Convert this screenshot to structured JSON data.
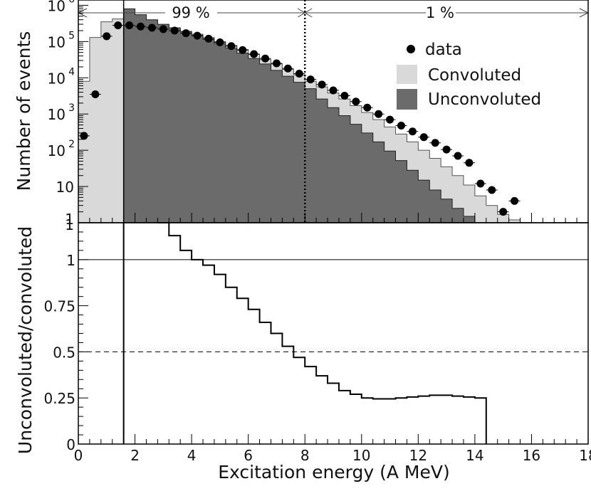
{
  "chart_data": [
    {
      "type": "histogram",
      "panel": "top",
      "y_scale": "log",
      "ylabel": "Number of events",
      "xlim": [
        0,
        18
      ],
      "ylim": [
        1,
        1400000
      ],
      "y_ticks": [
        {
          "value": 1,
          "label": "1"
        },
        {
          "value": 10,
          "label": "10"
        },
        {
          "value": 100,
          "label": "10",
          "sup": "2"
        },
        {
          "value": 1000,
          "label": "10",
          "sup": "3"
        },
        {
          "value": 10000,
          "label": "10",
          "sup": "4"
        },
        {
          "value": 100000,
          "label": "10",
          "sup": "5"
        },
        {
          "value": 1000000,
          "label": "10",
          "sup": "6"
        }
      ],
      "bin_edges": [
        0.0,
        0.4,
        0.8,
        1.2,
        1.6,
        2.0,
        2.4,
        2.8,
        3.2,
        3.6,
        4.0,
        4.4,
        4.8,
        5.2,
        5.6,
        6.0,
        6.4,
        6.8,
        7.2,
        7.6,
        8.0,
        8.4,
        8.8,
        9.2,
        9.6,
        10.0,
        10.4,
        10.8,
        11.2,
        11.6,
        12.0,
        12.4,
        12.8,
        13.2,
        13.6,
        14.0,
        14.4,
        14.8,
        15.2,
        15.6,
        16.0,
        16.4,
        16.8
      ],
      "series": [
        {
          "name": "Convoluted",
          "color": "#d9d9d9",
          "values": [
            8000,
            130000,
            350000,
            420000,
            400000,
            350000,
            300000,
            260000,
            225000,
            190000,
            160000,
            130000,
            100000,
            78000,
            60000,
            44000,
            32000,
            24000,
            17000,
            12000,
            8000,
            5600,
            3800,
            2600,
            1700,
            1100,
            700,
            440,
            280,
            170,
            100,
            60,
            35,
            20,
            11,
            5.5,
            3,
            1.7,
            1.2,
            1,
            0,
            0
          ]
        },
        {
          "name": "Unconvoluted",
          "color": "#6b6b6b",
          "values": [
            0,
            0,
            0,
            0,
            800000,
            550000,
            400000,
            300000,
            240000,
            190000,
            150000,
            115000,
            88000,
            66000,
            48000,
            34000,
            24000,
            16000,
            11000,
            7500,
            5000,
            2600,
            1500,
            900,
            520,
            300,
            170,
            95,
            52,
            28,
            15,
            8,
            4.5,
            2.5,
            1.5,
            1,
            0,
            0,
            0,
            0,
            0,
            0
          ]
        },
        {
          "name": "data",
          "type": "scatter",
          "x": [
            0.2,
            0.6,
            1.0,
            1.4,
            1.8,
            2.2,
            2.6,
            3.0,
            3.4,
            3.8,
            4.2,
            4.6,
            5.0,
            5.4,
            5.8,
            6.2,
            6.6,
            7.0,
            7.4,
            7.8,
            8.2,
            8.6,
            9.0,
            9.4,
            9.8,
            10.2,
            10.6,
            11.0,
            11.4,
            11.8,
            12.2,
            12.6,
            13.0,
            13.4,
            13.8,
            14.2,
            14.6,
            15.0,
            15.4
          ],
          "y": [
            250,
            3500,
            140000,
            280000,
            280000,
            260000,
            240000,
            220000,
            200000,
            170000,
            145000,
            120000,
            95000,
            75000,
            58000,
            45000,
            34000,
            25000,
            18000,
            13000,
            9000,
            6500,
            4500,
            3200,
            2200,
            1500,
            1000,
            700,
            480,
            330,
            230,
            160,
            105,
            70,
            45,
            12,
            8,
            2,
            4
          ]
        }
      ],
      "legend": {
        "placement": "top-right",
        "entries": [
          "data",
          "Convoluted",
          "Unconvoluted"
        ]
      },
      "annotations": [
        {
          "text": "99 %",
          "range": [
            0,
            8
          ]
        },
        {
          "text": "1 %",
          "range": [
            8,
            18
          ]
        }
      ],
      "reference_lines": [
        {
          "orientation": "vertical",
          "x": 8,
          "style": "dotted"
        },
        {
          "orientation": "vertical",
          "x": 1.6,
          "style": "solid"
        }
      ]
    },
    {
      "type": "line",
      "panel": "bottom",
      "xlabel": "Excitation energy (A MeV)",
      "ylabel": "Unconvoluted/convoluted",
      "xlim": [
        0,
        18
      ],
      "ylim": [
        0,
        1.2
      ],
      "x_ticks": [
        0,
        2,
        4,
        6,
        8,
        10,
        12,
        14,
        16,
        18
      ],
      "y_ticks": [
        {
          "value": 0,
          "label": "0"
        },
        {
          "value": 0.25,
          "label": "0.25"
        },
        {
          "value": 0.5,
          "label": "0.5"
        },
        {
          "value": 0.75,
          "label": "0.75"
        },
        {
          "value": 1,
          "label": "1"
        }
      ],
      "series": [
        {
          "name": "ratio",
          "step": true,
          "x": [
            2.8,
            3.2,
            3.6,
            4.0,
            4.4,
            4.8,
            5.2,
            5.6,
            6.0,
            6.4,
            6.8,
            7.2,
            7.6,
            8.0,
            8.4,
            8.8,
            9.2,
            9.6,
            10.0,
            10.4,
            10.8,
            11.2,
            11.6,
            12.0,
            12.4,
            12.8,
            13.2,
            13.6,
            14.0,
            14.4
          ],
          "y": [
            1.2,
            1.13,
            1.05,
            1.0,
            0.97,
            0.92,
            0.85,
            0.79,
            0.73,
            0.66,
            0.6,
            0.53,
            0.47,
            0.42,
            0.37,
            0.33,
            0.29,
            0.27,
            0.25,
            0.245,
            0.245,
            0.25,
            0.255,
            0.26,
            0.265,
            0.265,
            0.26,
            0.255,
            0.25,
            0.0
          ]
        }
      ],
      "reference_lines": [
        {
          "orientation": "horizontal",
          "y": 1,
          "style": "solid"
        },
        {
          "orientation": "horizontal",
          "y": 0.5,
          "style": "dashed"
        },
        {
          "orientation": "vertical",
          "x": 1.6,
          "style": "solid"
        }
      ]
    }
  ]
}
